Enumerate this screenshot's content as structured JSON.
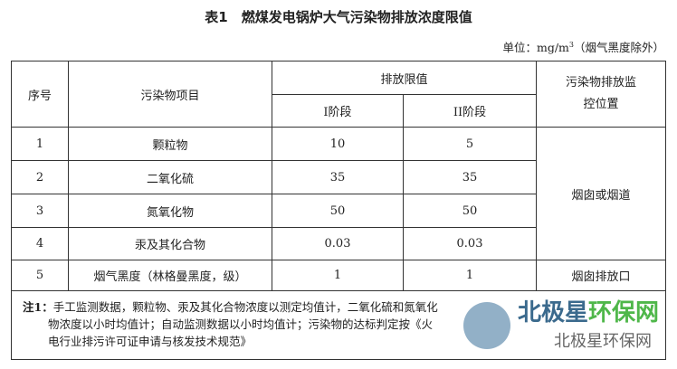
{
  "title": "表1　燃煤发电锅炉大气污染物排放浓度限值",
  "unit": {
    "prefix": "单位：mg/m",
    "sup": "3",
    "suffix": "（烟气黑度除外）"
  },
  "headers": {
    "no": "序号",
    "pollutant": "污染物项目",
    "limit": "排放限值",
    "stage1": "I阶段",
    "stage2": "II阶段",
    "location": "污染物排放监控位置"
  },
  "rows": [
    {
      "no": "1",
      "pollutant": "颗粒物",
      "s1": "10",
      "s2": "5"
    },
    {
      "no": "2",
      "pollutant": "二氧化硫",
      "s1": "35",
      "s2": "35"
    },
    {
      "no": "3",
      "pollutant": "氮氧化物",
      "s1": "50",
      "s2": "50"
    },
    {
      "no": "4",
      "pollutant": "汞及其化合物",
      "s1": "0.03",
      "s2": "0.03"
    },
    {
      "no": "5",
      "pollutant": "烟气黑度（林格曼黑度，级）",
      "s1": "1",
      "s2": "1"
    }
  ],
  "locations": [
    "烟囱或烟道",
    "烟囱排放口"
  ],
  "note": {
    "label": "注1：",
    "text": "手工监测数据，颗粒物、汞及其化合物浓度以测定均值计，二氧化硫和氮氧化物浓度以小时均值计；自动监测数据以小时均值计；污染物的达标判定按《火电行业排污许可证申请与核发技术规范》"
  },
  "watermark": {
    "main_a": "北极星",
    "main_b": "环保网",
    "sub": "北极星环保网"
  }
}
